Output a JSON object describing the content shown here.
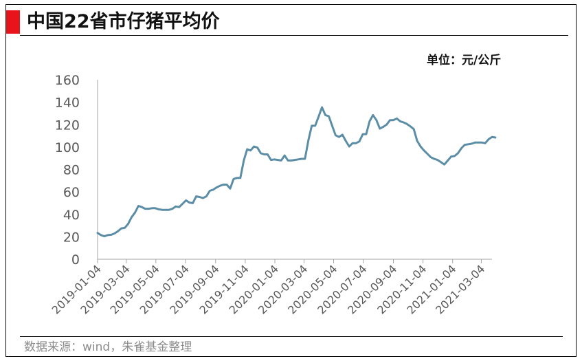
{
  "title": "中国22省市仔猪平均价",
  "unit_label": "单位：元/公斤",
  "source_note": "数据来源：wind，朱雀基金整理",
  "colors": {
    "accent": "#e8141c",
    "line": "#5b8ea6",
    "axis": "#a6a6a6",
    "tick_text": "#595959"
  },
  "chart_data": {
    "type": "line",
    "title": "中国22省市仔猪平均价",
    "xlabel": "",
    "ylabel": "",
    "unit": "元/公斤",
    "ylim": [
      0,
      160
    ],
    "yticks": [
      0,
      20,
      40,
      60,
      80,
      100,
      120,
      140,
      160
    ],
    "grid": false,
    "legend": "none",
    "xlim": [
      "2019-01-04",
      "2021-03-26"
    ],
    "xticks": [
      "2019-01-04",
      "2019-03-04",
      "2019-05-04",
      "2019-07-04",
      "2019-09-04",
      "2019-11-04",
      "2020-01-04",
      "2020-03-04",
      "2020-05-04",
      "2020-07-04",
      "2020-09-04",
      "2020-11-04",
      "2021-01-04",
      "2021-03-04"
    ],
    "series": [
      {
        "name": "",
        "points": [
          [
            "2019-01-04",
            23.5
          ],
          [
            "2019-01-11",
            21.5
          ],
          [
            "2019-01-18",
            20.5
          ],
          [
            "2019-01-25",
            21.5
          ],
          [
            "2019-02-01",
            21.8
          ],
          [
            "2019-02-08",
            23.0
          ],
          [
            "2019-02-15",
            25.0
          ],
          [
            "2019-02-22",
            27.5
          ],
          [
            "2019-03-01",
            28.0
          ],
          [
            "2019-03-08",
            31.5
          ],
          [
            "2019-03-15",
            37.5
          ],
          [
            "2019-03-22",
            41.5
          ],
          [
            "2019-03-29",
            47.5
          ],
          [
            "2019-04-05",
            46.5
          ],
          [
            "2019-04-12",
            45.0
          ],
          [
            "2019-04-19",
            45.0
          ],
          [
            "2019-04-26",
            45.5
          ],
          [
            "2019-05-03",
            45.5
          ],
          [
            "2019-05-10",
            44.5
          ],
          [
            "2019-05-17",
            44.0
          ],
          [
            "2019-05-24",
            44.0
          ],
          [
            "2019-05-31",
            44.0
          ],
          [
            "2019-06-07",
            45.0
          ],
          [
            "2019-06-14",
            47.0
          ],
          [
            "2019-06-21",
            46.5
          ],
          [
            "2019-06-28",
            49.5
          ],
          [
            "2019-07-05",
            52.5
          ],
          [
            "2019-07-12",
            50.5
          ],
          [
            "2019-07-19",
            50.0
          ],
          [
            "2019-07-26",
            56.0
          ],
          [
            "2019-08-02",
            55.5
          ],
          [
            "2019-08-09",
            54.5
          ],
          [
            "2019-08-16",
            56.0
          ],
          [
            "2019-08-23",
            61.0
          ],
          [
            "2019-08-30",
            62.0
          ],
          [
            "2019-09-06",
            64.0
          ],
          [
            "2019-09-13",
            65.5
          ],
          [
            "2019-09-20",
            66.5
          ],
          [
            "2019-09-27",
            66.5
          ],
          [
            "2019-10-04",
            63.0
          ],
          [
            "2019-10-11",
            71.5
          ],
          [
            "2019-10-18",
            72.5
          ],
          [
            "2019-10-25",
            72.5
          ],
          [
            "2019-11-01",
            88.0
          ],
          [
            "2019-11-08",
            98.0
          ],
          [
            "2019-11-15",
            97.0
          ],
          [
            "2019-11-22",
            100.5
          ],
          [
            "2019-11-29",
            99.5
          ],
          [
            "2019-12-06",
            94.5
          ],
          [
            "2019-12-13",
            93.5
          ],
          [
            "2019-12-20",
            93.5
          ],
          [
            "2019-12-27",
            88.5
          ],
          [
            "2020-01-03",
            89.0
          ],
          [
            "2020-01-10",
            88.5
          ],
          [
            "2020-01-17",
            88.0
          ],
          [
            "2020-01-24",
            92.5
          ],
          [
            "2020-01-31",
            88.0
          ],
          [
            "2020-02-07",
            88.0
          ],
          [
            "2020-02-14",
            88.5
          ],
          [
            "2020-02-21",
            89.0
          ],
          [
            "2020-02-28",
            89.5
          ],
          [
            "2020-03-06",
            89.5
          ],
          [
            "2020-03-13",
            106.0
          ],
          [
            "2020-03-20",
            119.0
          ],
          [
            "2020-03-27",
            119.0
          ],
          [
            "2020-04-03",
            127.0
          ],
          [
            "2020-04-10",
            135.5
          ],
          [
            "2020-04-17",
            128.5
          ],
          [
            "2020-04-24",
            127.5
          ],
          [
            "2020-05-01",
            119.0
          ],
          [
            "2020-05-08",
            110.5
          ],
          [
            "2020-05-15",
            109.0
          ],
          [
            "2020-05-22",
            111.0
          ],
          [
            "2020-05-29",
            105.5
          ],
          [
            "2020-06-05",
            100.5
          ],
          [
            "2020-06-12",
            103.5
          ],
          [
            "2020-06-19",
            103.5
          ],
          [
            "2020-06-26",
            105.0
          ],
          [
            "2020-07-03",
            111.5
          ],
          [
            "2020-07-10",
            111.5
          ],
          [
            "2020-07-17",
            123.0
          ],
          [
            "2020-07-24",
            128.5
          ],
          [
            "2020-07-31",
            124.0
          ],
          [
            "2020-08-07",
            116.5
          ],
          [
            "2020-08-14",
            118.0
          ],
          [
            "2020-08-21",
            120.0
          ],
          [
            "2020-08-28",
            124.0
          ],
          [
            "2020-09-04",
            124.0
          ],
          [
            "2020-09-11",
            125.5
          ],
          [
            "2020-09-18",
            123.0
          ],
          [
            "2020-09-25",
            122.0
          ],
          [
            "2020-10-02",
            120.5
          ],
          [
            "2020-10-09",
            118.5
          ],
          [
            "2020-10-16",
            116.0
          ],
          [
            "2020-10-23",
            105.5
          ],
          [
            "2020-10-30",
            100.5
          ],
          [
            "2020-11-06",
            97.0
          ],
          [
            "2020-11-13",
            94.0
          ],
          [
            "2020-11-20",
            91.0
          ],
          [
            "2020-11-27",
            89.5
          ],
          [
            "2020-12-04",
            88.5
          ],
          [
            "2020-12-11",
            86.5
          ],
          [
            "2020-12-18",
            84.5
          ],
          [
            "2020-12-25",
            88.0
          ],
          [
            "2021-01-01",
            91.5
          ],
          [
            "2021-01-08",
            92.0
          ],
          [
            "2021-01-15",
            94.5
          ],
          [
            "2021-01-22",
            99.0
          ],
          [
            "2021-01-29",
            102.0
          ],
          [
            "2021-02-05",
            102.5
          ],
          [
            "2021-02-12",
            103.0
          ],
          [
            "2021-02-19",
            104.0
          ],
          [
            "2021-02-26",
            104.0
          ],
          [
            "2021-03-05",
            104.0
          ],
          [
            "2021-03-12",
            103.5
          ],
          [
            "2021-03-19",
            107.0
          ],
          [
            "2021-03-26",
            109.0
          ],
          [
            "2021-04-02",
            108.5
          ]
        ]
      }
    ]
  }
}
